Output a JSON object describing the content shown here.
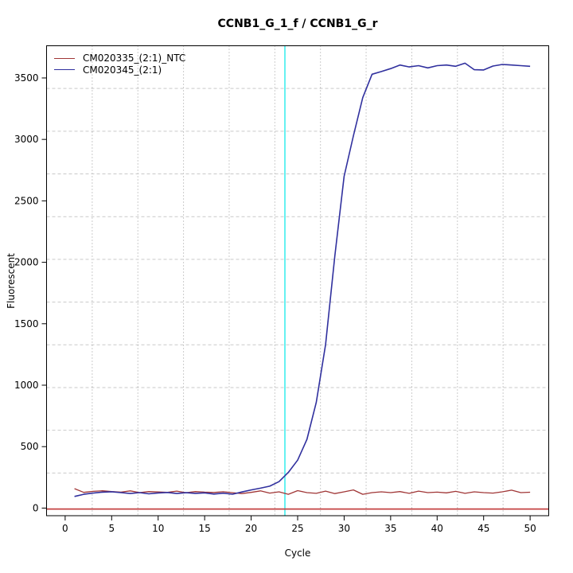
{
  "chart_data": {
    "type": "line",
    "title": "CCNB1_G_1_f / CCNB1_G_r",
    "xlabel": "Cycle",
    "ylabel": "Fluorescent",
    "x_ticks": [
      0,
      5,
      10,
      15,
      20,
      25,
      30,
      35,
      40,
      45,
      50
    ],
    "y_ticks": [
      0,
      500,
      1000,
      1500,
      2000,
      2500,
      3000,
      3500
    ],
    "x_range_ext": [
      -2,
      52
    ],
    "y_range_ext": [
      -62,
      3762
    ],
    "grid_divisions": 11,
    "grid_on": true,
    "legend_position": "top-left",
    "x": [
      1,
      2,
      3,
      4,
      5,
      6,
      7,
      8,
      9,
      10,
      11,
      12,
      13,
      14,
      15,
      16,
      17,
      18,
      19,
      20,
      21,
      22,
      23,
      24,
      25,
      26,
      27,
      28,
      29,
      30,
      31,
      32,
      33,
      34,
      35,
      36,
      37,
      38,
      39,
      40,
      41,
      42,
      43,
      44,
      45,
      46,
      47,
      48,
      49,
      50
    ],
    "series": [
      {
        "name": "CM020335_(2:1)_NTC",
        "color": "#a03636",
        "line_width": 1.3,
        "values": [
          158,
          128,
          136,
          141,
          134,
          130,
          140,
          126,
          134,
          131,
          128,
          138,
          125,
          134,
          130,
          127,
          133,
          125,
          118,
          128,
          140,
          122,
          132,
          112,
          142,
          126,
          120,
          138,
          118,
          132,
          148,
          112,
          126,
          132,
          126,
          134,
          120,
          138,
          126,
          130,
          124,
          136,
          120,
          132,
          126,
          122,
          132,
          146,
          126,
          129
        ]
      },
      {
        "name": "CM020345_(2:1)",
        "color": "#30309e",
        "line_width": 1.6,
        "values": [
          95,
          112,
          122,
          130,
          133,
          126,
          119,
          126,
          116,
          123,
          127,
          119,
          125,
          120,
          124,
          114,
          121,
          113,
          131,
          148,
          162,
          178,
          215,
          290,
          390,
          560,
          860,
          1330,
          2050,
          2700,
          3030,
          3340,
          3530,
          3552,
          3576,
          3605,
          3590,
          3600,
          3582,
          3600,
          3605,
          3595,
          3620,
          3567,
          3565,
          3597,
          3610,
          3605,
          3600,
          3595
        ]
      }
    ],
    "threshold_line": {
      "y": -8,
      "color": "#c44242",
      "width": 1.8
    },
    "ct_marker_line": {
      "x": 23.63,
      "color": "#00e8e8",
      "width": 1.2
    },
    "style": {
      "axis_color": "#000000",
      "grid_v_color": "#999999",
      "grid_h_color": "#c9c9c9",
      "tick_label_color": "#000000"
    }
  }
}
